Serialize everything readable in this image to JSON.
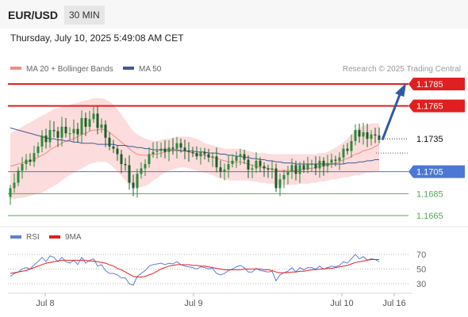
{
  "header": {
    "pair": "EUR/USD",
    "timeframe": "30 MIN"
  },
  "datetime": "Thursday, July 10, 2025 5:49:08 AM CET",
  "legend": {
    "ma20": {
      "label": "MA 20 + Bollinger Bands",
      "color": "#f28b82"
    },
    "ma50": {
      "label": "MA 50",
      "color": "#3d5a99"
    }
  },
  "watermark": "Research © 2025 Trading Central",
  "rsi_legend": {
    "rsi": {
      "label": "RSI",
      "color": "#5b7fd6"
    },
    "ma": {
      "label": "9MA",
      "color": "#e02020"
    }
  },
  "colors": {
    "up": "#2e8b3a",
    "down": "#1e5c28",
    "resistance": "#e02020",
    "pivot": "#4a78d4",
    "support": "#56a65a",
    "forecast_arrow": "#2d5aa6"
  },
  "chart_data": {
    "type": "candlestick",
    "y_range": [
      1.1655,
      1.1795
    ],
    "x_labels": [
      "Jul 8",
      "Jul 9",
      "Jul 10",
      "Jul 16"
    ],
    "current_price": "1.1735",
    "levels": [
      {
        "label": "1.1785",
        "value": 1.1785,
        "kind": "resistance"
      },
      {
        "label": "1.1765",
        "value": 1.1765,
        "kind": "resistance"
      },
      {
        "label": "1.1705",
        "value": 1.1705,
        "kind": "pivot"
      },
      {
        "label": "1.1685",
        "value": 1.1685,
        "kind": "support"
      },
      {
        "label": "1.1665",
        "value": 1.1665,
        "kind": "support"
      }
    ],
    "forecast": {
      "from": 1.1734,
      "to": 1.1783
    },
    "closes": [
      1.169,
      1.1695,
      1.1706,
      1.1712,
      1.1716,
      1.1714,
      1.1722,
      1.1728,
      1.1738,
      1.1732,
      1.1743,
      1.1742,
      1.1736,
      1.1746,
      1.174,
      1.174,
      1.1744,
      1.1739,
      1.1754,
      1.1746,
      1.1753,
      1.1758,
      1.1745,
      1.1748,
      1.1736,
      1.1728,
      1.1726,
      1.1721,
      1.1712,
      1.1711,
      1.1695,
      1.169,
      1.1703,
      1.1708,
      1.1712,
      1.1721,
      1.1723,
      1.1724,
      1.1726,
      1.1723,
      1.1727,
      1.1726,
      1.1731,
      1.1727,
      1.1724,
      1.1723,
      1.1722,
      1.1719,
      1.1723,
      1.1721,
      1.1718,
      1.1719,
      1.1709,
      1.1705,
      1.1707,
      1.1712,
      1.1715,
      1.1719,
      1.1721,
      1.1716,
      1.1707,
      1.1708,
      1.1715,
      1.171,
      1.1708,
      1.1707,
      1.1708,
      1.169,
      1.1698,
      1.1702,
      1.1705,
      1.1711,
      1.1703,
      1.1711,
      1.1707,
      1.1712,
      1.1712,
      1.1708,
      1.1715,
      1.171,
      1.1713,
      1.1716,
      1.1715,
      1.1718,
      1.1726,
      1.1724,
      1.1733,
      1.1743,
      1.1737,
      1.1741,
      1.1735,
      1.1739,
      1.1738,
      1.1734
    ],
    "ma20": [
      1.171,
      1.1711,
      1.1712,
      1.1713,
      1.1714,
      1.1715,
      1.1716,
      1.1718,
      1.172,
      1.1722,
      1.1725,
      1.1727,
      1.1729,
      1.1731,
      1.1733,
      1.1734,
      1.1735,
      1.1737,
      1.1739,
      1.174,
      1.1742,
      1.1743,
      1.1743,
      1.1744,
      1.1743,
      1.1741,
      1.1738,
      1.1735,
      1.1732,
      1.1729,
      1.1726,
      1.1723,
      1.1721,
      1.172,
      1.172,
      1.172,
      1.1721,
      1.1721,
      1.1722,
      1.1723,
      1.1724,
      1.1724,
      1.1724,
      1.1724,
      1.1724,
      1.1723,
      1.1722,
      1.1721,
      1.172,
      1.172,
      1.1719,
      1.1718,
      1.1717,
      1.1716,
      1.1715,
      1.1714,
      1.1714,
      1.1714,
      1.1714,
      1.1713,
      1.1712,
      1.1711,
      1.171,
      1.1709,
      1.1709,
      1.1708,
      1.1707,
      1.1706,
      1.1706,
      1.1706,
      1.1706,
      1.1706,
      1.1706,
      1.1707,
      1.1707,
      1.1708,
      1.1708,
      1.1709,
      1.171,
      1.171,
      1.1711,
      1.1712,
      1.1713,
      1.1714,
      1.1716,
      1.1717,
      1.1719,
      1.1721,
      1.1722,
      1.1724,
      1.1725,
      1.1726,
      1.1728,
      1.173
    ],
    "ma50": [
      1.1745,
      1.1744,
      1.1743,
      1.1742,
      1.1741,
      1.174,
      1.1739,
      1.1738,
      1.1737,
      1.1736,
      1.1735,
      1.1735,
      1.1734,
      1.1734,
      1.1733,
      1.1733,
      1.1732,
      1.1732,
      1.1731,
      1.1731,
      1.1731,
      1.1731,
      1.173,
      1.173,
      1.173,
      1.173,
      1.173,
      1.1729,
      1.1729,
      1.1729,
      1.1728,
      1.1728,
      1.1727,
      1.1727,
      1.1726,
      1.1726,
      1.1725,
      1.1725,
      1.1725,
      1.1725,
      1.1725,
      1.1725,
      1.1725,
      1.1724,
      1.1724,
      1.1724,
      1.1724,
      1.1723,
      1.1723,
      1.1723,
      1.1722,
      1.1722,
      1.1722,
      1.1721,
      1.1721,
      1.172,
      1.172,
      1.1719,
      1.1719,
      1.1718,
      1.1718,
      1.1717,
      1.1717,
      1.1716,
      1.1716,
      1.1715,
      1.1715,
      1.1714,
      1.1714,
      1.1713,
      1.1713,
      1.1713,
      1.1712,
      1.1712,
      1.1712,
      1.1712,
      1.1712,
      1.1712,
      1.1712,
      1.1712,
      1.1712,
      1.1712,
      1.1712,
      1.1712,
      1.1712,
      1.1713,
      1.1713,
      1.1713,
      1.1714,
      1.1714,
      1.1715,
      1.1715,
      1.1716,
      1.1716
    ],
    "bb_upper": [
      1.174,
      1.1742,
      1.1744,
      1.1746,
      1.1748,
      1.175,
      1.1752,
      1.1754,
      1.1756,
      1.1758,
      1.176,
      1.1762,
      1.1763,
      1.1764,
      1.1765,
      1.1766,
      1.1767,
      1.1768,
      1.1769,
      1.177,
      1.1771,
      1.1772,
      1.1772,
      1.1772,
      1.1771,
      1.1769,
      1.1766,
      1.1762,
      1.1757,
      1.1752,
      1.1747,
      1.1742,
      1.1739,
      1.1737,
      1.1735,
      1.1734,
      1.1733,
      1.1733,
      1.1734,
      1.1735,
      1.1735,
      1.1736,
      1.1737,
      1.1737,
      1.1737,
      1.1737,
      1.1736,
      1.1735,
      1.1733,
      1.1731,
      1.173,
      1.1729,
      1.1728,
      1.1727,
      1.1726,
      1.1726,
      1.1726,
      1.1726,
      1.1726,
      1.1725,
      1.1724,
      1.1723,
      1.1722,
      1.1722,
      1.1722,
      1.1721,
      1.1721,
      1.1721,
      1.1721,
      1.1721,
      1.1721,
      1.1721,
      1.1721,
      1.1721,
      1.1721,
      1.1721,
      1.1721,
      1.1721,
      1.1722,
      1.1722,
      1.1723,
      1.1725,
      1.1727,
      1.1729,
      1.1732,
      1.1735,
      1.1739,
      1.1743,
      1.1745,
      1.1747,
      1.1748,
      1.1749,
      1.1749,
      1.1749
    ],
    "bb_lower": [
      1.168,
      1.168,
      1.1681,
      1.1681,
      1.1682,
      1.1683,
      1.1684,
      1.1685,
      1.1686,
      1.1688,
      1.169,
      1.1692,
      1.1694,
      1.1697,
      1.17,
      1.1702,
      1.1704,
      1.1706,
      1.1708,
      1.171,
      1.1712,
      1.1713,
      1.1714,
      1.1714,
      1.1714,
      1.1712,
      1.1709,
      1.1705,
      1.1701,
      1.1697,
      1.1694,
      1.1692,
      1.1691,
      1.1691,
      1.1692,
      1.1694,
      1.1697,
      1.1699,
      1.1702,
      1.1704,
      1.1706,
      1.1707,
      1.1708,
      1.1709,
      1.1709,
      1.1708,
      1.1707,
      1.1706,
      1.1705,
      1.1704,
      1.1703,
      1.1702,
      1.17,
      1.1699,
      1.1698,
      1.1697,
      1.1697,
      1.1697,
      1.1697,
      1.1697,
      1.1697,
      1.1696,
      1.1696,
      1.1695,
      1.1695,
      1.1694,
      1.1694,
      1.1693,
      1.1693,
      1.1693,
      1.1693,
      1.1693,
      1.1693,
      1.1694,
      1.1694,
      1.1694,
      1.1695,
      1.1695,
      1.1696,
      1.1696,
      1.1697,
      1.1698,
      1.1698,
      1.1699,
      1.17,
      1.17,
      1.1701,
      1.1702,
      1.1702,
      1.1703,
      1.1704,
      1.1704,
      1.1705,
      1.1706
    ],
    "rsi": {
      "ticks": [
        "70",
        "50",
        "30"
      ],
      "values": [
        40,
        44,
        46,
        50,
        52,
        50,
        56,
        60,
        66,
        60,
        68,
        66,
        60,
        66,
        60,
        58,
        62,
        56,
        66,
        58,
        62,
        64,
        54,
        56,
        48,
        44,
        44,
        42,
        38,
        38,
        30,
        28,
        40,
        44,
        48,
        54,
        56,
        57,
        58,
        56,
        58,
        57,
        60,
        56,
        54,
        53,
        52,
        50,
        53,
        52,
        50,
        51,
        44,
        42,
        44,
        48,
        50,
        53,
        55,
        52,
        46,
        46,
        51,
        48,
        47,
        46,
        47,
        34,
        42,
        45,
        47,
        52,
        46,
        52,
        49,
        52,
        52,
        50,
        54,
        50,
        52,
        54,
        53,
        55,
        60,
        58,
        64,
        70,
        64,
        67,
        62,
        64,
        63,
        60
      ],
      "ma9": [
        44,
        45,
        46,
        47,
        48,
        50,
        52,
        54,
        56,
        58,
        59,
        60,
        61,
        62,
        62,
        62,
        62,
        62,
        62,
        62,
        61,
        61,
        60,
        59,
        58,
        56,
        54,
        51,
        49,
        46,
        43,
        40,
        39,
        39,
        40,
        42,
        44,
        47,
        50,
        52,
        54,
        55,
        56,
        56,
        56,
        56,
        55,
        55,
        54,
        54,
        53,
        52,
        51,
        50,
        49,
        49,
        49,
        49,
        49,
        50,
        50,
        50,
        50,
        50,
        49,
        49,
        48,
        46,
        45,
        45,
        45,
        46,
        46,
        47,
        47,
        48,
        49,
        49,
        50,
        50,
        51,
        51,
        52,
        53,
        54,
        55,
        57,
        59,
        60,
        61,
        62,
        63,
        63,
        63
      ]
    }
  }
}
